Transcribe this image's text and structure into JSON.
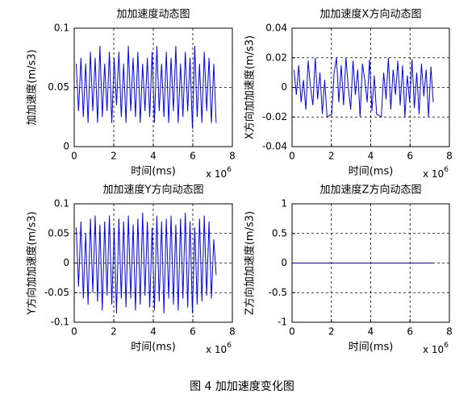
{
  "chart_data": [
    {
      "type": "line",
      "title": "加加速度动态图",
      "xlabel": "时间(ms)",
      "ylabel": "加加速度(m/s3)",
      "x_scale_label": "x 10",
      "x_scale_exponent": "6",
      "color": "#0000ff",
      "grid": true,
      "xlim": [
        0,
        8
      ],
      "xticks": [
        0,
        2,
        4,
        6,
        8
      ],
      "ylim": [
        0,
        0.1
      ],
      "yticks": [
        0,
        0.05,
        0.1
      ],
      "x": [
        0.1,
        0.22,
        0.34,
        0.46,
        0.58,
        0.7,
        0.82,
        0.94,
        1.06,
        1.18,
        1.3,
        1.42,
        1.54,
        1.66,
        1.78,
        1.9,
        2.02,
        2.14,
        2.26,
        2.38,
        2.5,
        2.62,
        2.74,
        2.86,
        2.98,
        3.1,
        3.22,
        3.34,
        3.46,
        3.58,
        3.7,
        3.82,
        3.94,
        4.06,
        4.18,
        4.3,
        4.42,
        4.54,
        4.66,
        4.78,
        4.9,
        5.02,
        5.14,
        5.26,
        5.38,
        5.5,
        5.62,
        5.74,
        5.86,
        5.98,
        6.1,
        6.22,
        6.34,
        6.46,
        6.58,
        6.7,
        6.82,
        6.94,
        7.06,
        7.18
      ],
      "values": [
        0.07,
        0.03,
        0.075,
        0.025,
        0.07,
        0.02,
        0.08,
        0.03,
        0.075,
        0.02,
        0.085,
        0.025,
        0.07,
        0.03,
        0.08,
        0.02,
        0.075,
        0.035,
        0.08,
        0.025,
        0.07,
        0.02,
        0.085,
        0.03,
        0.075,
        0.025,
        0.08,
        0.02,
        0.07,
        0.03,
        0.075,
        0.025,
        0.08,
        0.02,
        0.085,
        0.03,
        0.07,
        0.025,
        0.08,
        0.02,
        0.075,
        0.03,
        0.085,
        0.02,
        0.07,
        0.025,
        0.08,
        0.03,
        0.075,
        0.015,
        0.085,
        0.025,
        0.07,
        0.02,
        0.08,
        0.03,
        0.075,
        0.02,
        0.07,
        0.02
      ]
    },
    {
      "type": "line",
      "title": "加加速度X方向动态图",
      "xlabel": "时间(ms)",
      "ylabel": "X方向加加速度(m/s3)",
      "x_scale_label": "x 10",
      "x_scale_exponent": "6",
      "color": "#0000ff",
      "grid": true,
      "xlim": [
        0,
        8
      ],
      "xticks": [
        0,
        2,
        4,
        6,
        8
      ],
      "ylim": [
        -0.04,
        0.04
      ],
      "yticks": [
        -0.04,
        -0.02,
        0,
        0.02,
        0.04
      ],
      "x": [
        0.1,
        0.22,
        0.34,
        0.46,
        0.58,
        0.7,
        0.82,
        0.94,
        1.06,
        1.18,
        1.3,
        1.42,
        1.54,
        1.66,
        1.78,
        1.9,
        2.02,
        2.14,
        2.26,
        2.38,
        2.5,
        2.62,
        2.74,
        2.86,
        2.98,
        3.1,
        3.22,
        3.34,
        3.46,
        3.58,
        3.7,
        3.82,
        3.94,
        4.06,
        4.18,
        4.3,
        4.42,
        4.54,
        4.66,
        4.78,
        4.9,
        5.02,
        5.14,
        5.26,
        5.38,
        5.5,
        5.62,
        5.74,
        5.86,
        5.98,
        6.1,
        6.22,
        6.34,
        6.46,
        6.58,
        6.7,
        6.82,
        6.94,
        7.06,
        7.18
      ],
      "values": [
        0.012,
        -0.005,
        0.015,
        -0.01,
        0.005,
        -0.015,
        0.018,
        0.0,
        -0.012,
        0.02,
        -0.008,
        0.01,
        -0.018,
        0.005,
        -0.02,
        -0.019,
        -0.018,
        0.01,
        0.02,
        -0.01,
        0.015,
        -0.012,
        0.02,
        0.0,
        -0.015,
        0.018,
        -0.005,
        0.012,
        -0.02,
        0.016,
        0.005,
        -0.01,
        0.019,
        -0.016,
        0.008,
        -0.018,
        -0.019,
        -0.02,
        0.01,
        -0.008,
        0.02,
        -0.015,
        0.012,
        -0.005,
        0.018,
        -0.012,
        0.015,
        -0.02,
        0.008,
        -0.01,
        0.019,
        -0.014,
        0.01,
        -0.018,
        0.016,
        -0.006,
        0.012,
        -0.02,
        0.014,
        -0.01
      ]
    },
    {
      "type": "line",
      "title": "加加速度Y方向动态图",
      "xlabel": "时间(ms)",
      "ylabel": "Y方向加加速度(m/s3)",
      "x_scale_label": "x 10",
      "x_scale_exponent": "6",
      "color": "#0000ff",
      "grid": true,
      "xlim": [
        0,
        8
      ],
      "xticks": [
        0,
        2,
        4,
        6,
        8
      ],
      "ylim": [
        -0.1,
        0.1
      ],
      "yticks": [
        -0.1,
        -0.05,
        0,
        0.05,
        0.1
      ],
      "x": [
        0.1,
        0.22,
        0.34,
        0.46,
        0.58,
        0.7,
        0.82,
        0.94,
        1.06,
        1.18,
        1.3,
        1.42,
        1.54,
        1.66,
        1.78,
        1.9,
        2.02,
        2.14,
        2.26,
        2.38,
        2.5,
        2.62,
        2.74,
        2.86,
        2.98,
        3.1,
        3.22,
        3.34,
        3.46,
        3.58,
        3.7,
        3.82,
        3.94,
        4.06,
        4.18,
        4.3,
        4.42,
        4.54,
        4.66,
        4.78,
        4.9,
        5.02,
        5.14,
        5.26,
        5.38,
        5.5,
        5.62,
        5.74,
        5.86,
        5.98,
        6.1,
        6.22,
        6.34,
        6.46,
        6.58,
        6.7,
        6.82,
        6.94,
        7.06,
        7.18
      ],
      "values": [
        0.06,
        -0.04,
        0.07,
        -0.06,
        0.05,
        -0.07,
        0.075,
        -0.05,
        0.08,
        -0.065,
        0.065,
        -0.08,
        0.07,
        -0.055,
        0.08,
        -0.07,
        0.06,
        -0.085,
        0.075,
        -0.06,
        0.07,
        -0.075,
        0.08,
        -0.06,
        0.065,
        -0.08,
        0.075,
        -0.07,
        0.085,
        -0.055,
        0.07,
        -0.075,
        0.06,
        -0.08,
        0.08,
        -0.065,
        0.07,
        -0.085,
        0.075,
        -0.06,
        0.08,
        -0.07,
        0.065,
        -0.08,
        0.075,
        -0.06,
        0.085,
        -0.075,
        0.07,
        -0.085,
        0.06,
        -0.07,
        0.075,
        -0.065,
        0.08,
        -0.055,
        0.07,
        -0.06,
        0.04,
        -0.02
      ]
    },
    {
      "type": "line",
      "title": "加加速度Z方向动态图",
      "xlabel": "时间(ms)",
      "ylabel": "Z方向加加速度(m/s3)",
      "x_scale_label": "x 10",
      "x_scale_exponent": "6",
      "color": "#0000ff",
      "grid": true,
      "xlim": [
        0,
        8
      ],
      "xticks": [
        0,
        2,
        4,
        6,
        8
      ],
      "ylim": [
        -1,
        1
      ],
      "yticks": [
        -1,
        -0.5,
        0,
        0.5,
        1
      ],
      "x": [
        0,
        7.2
      ],
      "values": [
        0,
        0
      ]
    }
  ],
  "caption": "图 4 加加速度变化图"
}
